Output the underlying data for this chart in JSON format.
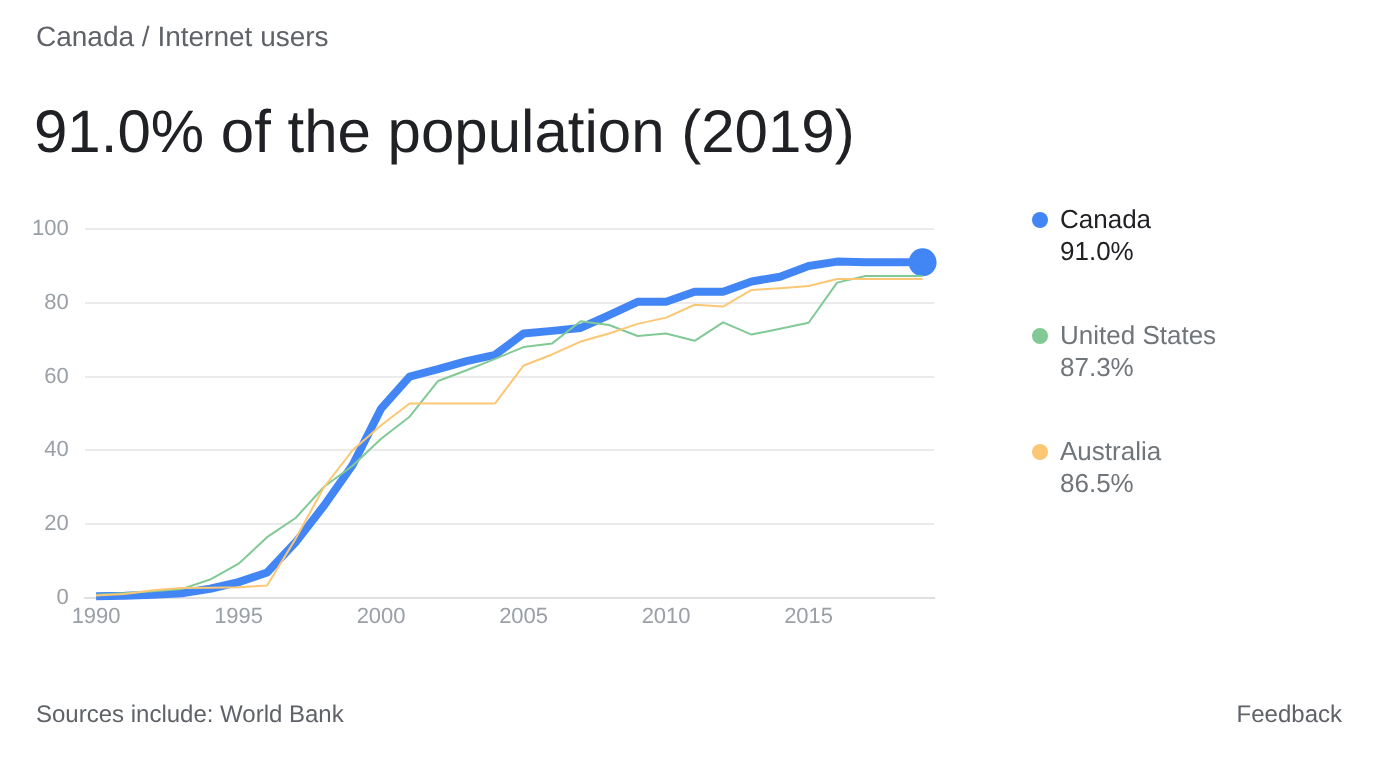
{
  "chart_data": {
    "type": "line",
    "subtitle": "Canada / Internet users",
    "title": "91.0% of the population (2019)",
    "x": [
      1990,
      1991,
      1992,
      1993,
      1994,
      1995,
      1996,
      1997,
      1998,
      1999,
      2000,
      2001,
      2002,
      2003,
      2004,
      2005,
      2006,
      2007,
      2008,
      2009,
      2010,
      2011,
      2012,
      2013,
      2014,
      2015,
      2016,
      2017,
      2018,
      2019
    ],
    "series": [
      {
        "name": "Canada",
        "color": "#4285f4",
        "values": [
          0.4,
          0.5,
          0.8,
          1.2,
          2.4,
          4.2,
          6.8,
          15,
          25,
          36,
          51.3,
          60,
          62,
          64.2,
          65.9,
          71.7,
          72.4,
          73.2,
          76.7,
          80.3,
          80.3,
          83,
          83,
          85.8,
          87.1,
          90,
          91.2,
          91,
          91,
          91
        ]
      },
      {
        "name": "United States",
        "color": "#81c995",
        "values": [
          0.8,
          1.2,
          1.7,
          2.3,
          4.9,
          9.2,
          16.4,
          21.6,
          30.1,
          35.8,
          43.1,
          49.1,
          58.8,
          61.7,
          64.8,
          68,
          69,
          75,
          74,
          71,
          71.7,
          69.7,
          74.7,
          71.4,
          73,
          74.6,
          85.5,
          87.3,
          87.3,
          87.3
        ]
      },
      {
        "name": "Australia",
        "color": "#fbc774",
        "values": [
          0.6,
          1,
          2,
          2.6,
          2.7,
          2.8,
          3.3,
          16,
          30,
          40,
          46.8,
          52.7,
          52.7,
          52.7,
          52.7,
          63,
          66,
          69.5,
          71.7,
          74.3,
          76,
          79.5,
          79,
          83.5,
          84,
          84.6,
          86.5,
          86.5,
          86.5,
          86.5
        ]
      }
    ],
    "xlim": [
      1989.6,
      2019.4
    ],
    "xticks": [
      1990,
      1995,
      2000,
      2005,
      2010,
      2015
    ],
    "ylim": [
      0,
      100
    ],
    "yticks": [
      0,
      20,
      40,
      60,
      80,
      100
    ],
    "grid": "y",
    "legend": "right",
    "annotations": [
      "91.0%",
      "87.3%",
      "86.5%",
      "Sources include: World Bank",
      "Feedback"
    ]
  }
}
